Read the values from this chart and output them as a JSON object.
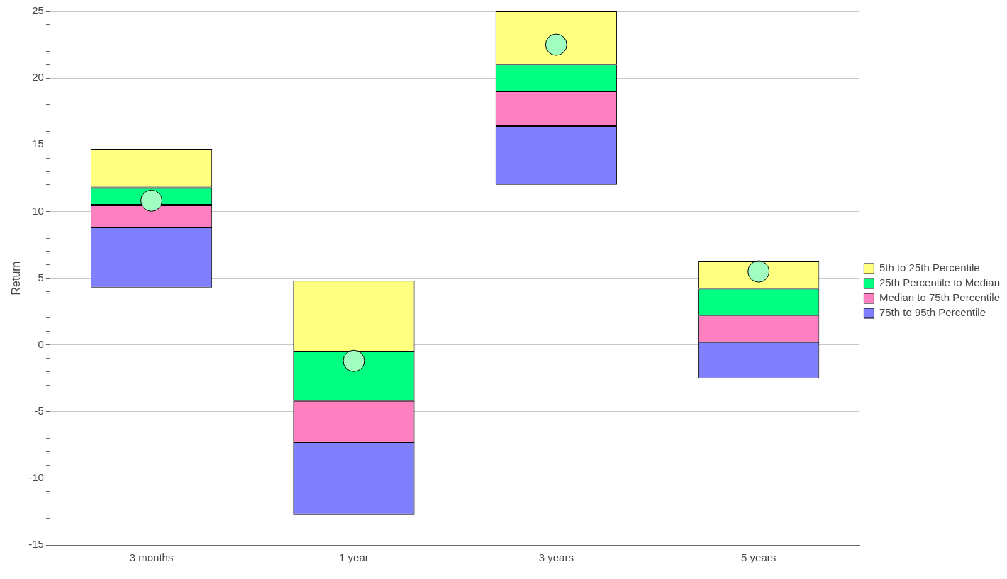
{
  "chart_data": {
    "type": "bar",
    "ylabel": "Return",
    "categories": [
      "3 months",
      "1 year",
      "3 years",
      "5 years"
    ],
    "series": [
      {
        "name": "75th to 95th Percentile",
        "color": "#8080ff",
        "base": [
          4.3,
          -12.7,
          12.0,
          -2.5
        ],
        "values": [
          4.5,
          5.4,
          4.4,
          2.7
        ]
      },
      {
        "name": "Median to 75th Percentile",
        "color": "#ff80c0",
        "base": [
          8.8,
          -7.3,
          16.4,
          0.2
        ],
        "values": [
          1.7,
          3.1,
          2.6,
          2.0
        ]
      },
      {
        "name": "25th Percentile to Median",
        "color": "#00ff80",
        "base": [
          10.5,
          -4.2,
          19.0,
          2.2
        ],
        "values": [
          1.3,
          3.7,
          2.0,
          2.0
        ]
      },
      {
        "name": "5th to 25th Percentile",
        "color": "#ffff80",
        "base": [
          11.8,
          -0.5,
          21.0,
          4.2
        ],
        "values": [
          2.9,
          5.3,
          4.0,
          2.1
        ]
      },
      {
        "type": "scatter",
        "color": "#a0ffc0",
        "x": [
          "3 months",
          "1 year",
          "3 years",
          "5 years"
        ],
        "values": [
          10.8,
          -1.2,
          22.5,
          5.5
        ]
      }
    ],
    "ylim": [
      -15,
      25
    ],
    "yticks": [
      -15,
      {
        "value": -14,
        "label": null
      },
      {
        "value": -13,
        "label": null
      },
      {
        "value": -12,
        "label": null
      },
      {
        "value": -11,
        "label": null
      },
      -10,
      {
        "value": -9,
        "label": null
      },
      {
        "value": -8,
        "label": null
      },
      {
        "value": -7,
        "label": null
      },
      {
        "value": -6,
        "label": null
      },
      -5,
      {
        "value": -4,
        "label": null
      },
      {
        "value": -3,
        "label": null
      },
      {
        "value": -2,
        "label": null
      },
      {
        "value": -1,
        "label": null
      },
      0,
      {
        "value": 1,
        "label": null
      },
      {
        "value": 2,
        "label": null
      },
      {
        "value": 3,
        "label": null
      },
      {
        "value": 4,
        "label": null
      },
      5,
      {
        "value": 6,
        "label": null
      },
      {
        "value": 7,
        "label": null
      },
      {
        "value": 8,
        "label": null
      },
      {
        "value": 9,
        "label": null
      },
      10,
      {
        "value": 11,
        "label": null
      },
      {
        "value": 12,
        "label": null
      },
      {
        "value": 13,
        "label": null
      },
      {
        "value": 14,
        "label": null
      },
      15,
      {
        "value": 16,
        "label": null
      },
      {
        "value": 17,
        "label": null
      },
      {
        "value": 18,
        "label": null
      },
      {
        "value": 19,
        "label": null
      },
      20,
      {
        "value": 21,
        "label": null
      },
      {
        "value": 22,
        "label": null
      },
      {
        "value": 23,
        "label": null
      },
      {
        "value": 24,
        "label": null
      },
      25
    ],
    "grid": "y",
    "legend": "right",
    "marker": "circle"
  }
}
